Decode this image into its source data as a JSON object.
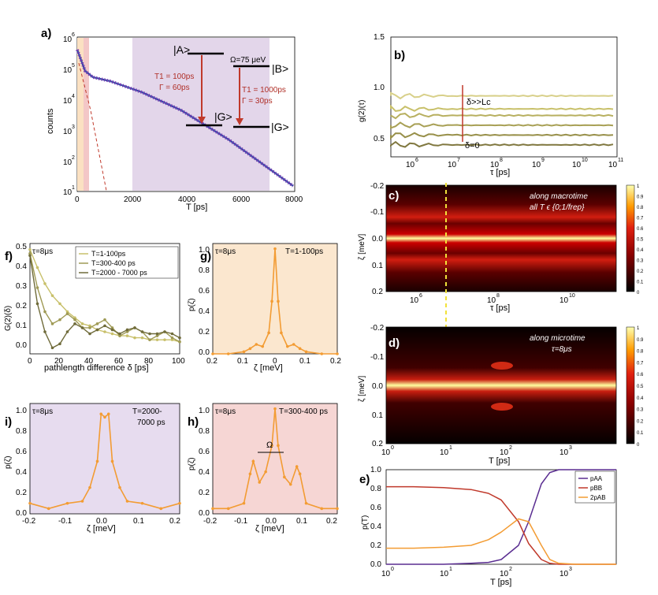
{
  "panels": {
    "a": {
      "label": "a)",
      "xlabel": "T [ps]",
      "ylabel": "counts",
      "xticks": [
        "0",
        "2000",
        "4000",
        "6000",
        "8000"
      ],
      "yticks": [
        "10",
        "10",
        "10",
        "10",
        "10",
        "10"
      ],
      "yexp": [
        "1",
        "2",
        "3",
        "4",
        "5",
        "6"
      ],
      "levelA": "|A>",
      "levelB": "|B>",
      "levelG1": "|G>",
      "levelG2": "|G>",
      "omega": "Ω=75 μeV",
      "t1a": "T1 = 100ps",
      "gammaA": "Γ = 60ps",
      "t1b": "T1 = 1000ps",
      "gammaB": "Γ = 30ps"
    },
    "b": {
      "label": "b)",
      "xlabel": "τ [ps]",
      "ylabel": "g(2)(τ)",
      "yticks": [
        "0.5",
        "1.0",
        "1.5"
      ],
      "xticks": [
        "10",
        "10",
        "10",
        "10",
        "10",
        "10"
      ],
      "xexp": [
        "6",
        "7",
        "8",
        "9",
        "10",
        "11"
      ],
      "ann_top": "δ>>Lc",
      "ann_bottom": "δ=0"
    },
    "c": {
      "label": "c)",
      "xlabel": "τ [ps]",
      "ylabel": "ζ [meV]",
      "ann1": "along macrotime",
      "ann2": "all T ϵ {0;1/frep}",
      "yticks": [
        "-0.2",
        "-0.1",
        "0.0",
        "0.1",
        "0.2"
      ],
      "xticks": [
        "10",
        "10",
        "10"
      ],
      "xexp": [
        "6",
        "8",
        "10"
      ],
      "cbticks": [
        "1",
        "0.9",
        "0.8",
        "0.7",
        "0.6",
        "0.5",
        "0.4",
        "0.3",
        "0.2",
        "0.1",
        "0"
      ]
    },
    "d": {
      "label": "d)",
      "xlabel": "T [ps]",
      "ylabel": "ζ [meV]",
      "ann1": "along microtime",
      "ann2": "τ=8μs",
      "yticks": [
        "-0.2",
        "-0.1",
        "0.0",
        "0.1",
        "0.2"
      ],
      "xticks": [
        "10",
        "10",
        "10",
        "10"
      ],
      "xexp": [
        "0",
        "1",
        "2",
        "3"
      ],
      "cbticks": [
        "1",
        "0.9",
        "0.8",
        "0.7",
        "0.6",
        "0.5",
        "0.4",
        "0.3",
        "0.2",
        "0.1",
        "0"
      ]
    },
    "e": {
      "label": "e)",
      "xlabel": "T [ps]",
      "ylabel": "p(T)",
      "yticks": [
        "0.0",
        "0.2",
        "0.4",
        "0.6",
        "0.8",
        "1.0"
      ],
      "xticks": [
        "10",
        "10",
        "10",
        "10"
      ],
      "xexp": [
        "0",
        "1",
        "2",
        "3"
      ],
      "legend": [
        "pAA",
        "pBB",
        "2pAB"
      ]
    },
    "f": {
      "label": "f)",
      "xlabel": "pathlength difference δ  [ps]",
      "ylabel": "G(2)(δ)",
      "tau": "τ=8μs",
      "xticks": [
        "0",
        "20",
        "40",
        "60",
        "80",
        "100"
      ],
      "yticks": [
        "0.0",
        "0.1",
        "0.2",
        "0.3",
        "0.4",
        "0.5"
      ],
      "legend": [
        "T=1-100ps",
        "T=300-400 ps",
        "T=2000 - 7000 ps"
      ]
    },
    "g": {
      "label": "g)",
      "xlabel": "ζ [meV]",
      "ylabel": "p(ζ)",
      "tau": "τ=8μs",
      "range": "T=1-100ps",
      "xticks": [
        "0.2",
        "0.1",
        "0",
        "0.1",
        "0.2"
      ],
      "yticks": [
        "0.0",
        "0.2",
        "0.4",
        "0.6",
        "0.8",
        "1.0"
      ]
    },
    "h": {
      "label": "h)",
      "xlabel": "ζ [meV]",
      "ylabel": "p(ζ)",
      "tau": "τ=8μs",
      "range": "T=300-400 ps",
      "omega": "Ω",
      "xticks": [
        "-0.2",
        "-0.1",
        "0.0",
        "0.1",
        "0.2"
      ],
      "yticks": [
        "0.0",
        "0.2",
        "0.4",
        "0.6",
        "0.8",
        "1.0"
      ]
    },
    "i": {
      "label": "i)",
      "xlabel": "ζ [meV]",
      "ylabel": "p(ζ)",
      "tau": "τ=8μs",
      "range1": "T=2000-",
      "range2": "7000 ps",
      "xticks": [
        "-0.2",
        "-0.1",
        "0.0",
        "0.1",
        "0.2"
      ],
      "yticks": [
        "0.0",
        "0.2",
        "0.4",
        "0.6",
        "0.8",
        "1.0"
      ]
    }
  },
  "colors": {
    "orange": "#f39c33",
    "purple": "#5a2d91",
    "red": "#c0392b",
    "olive1": "#c8c06a",
    "olive2": "#9f9a55",
    "olive3": "#6f6b3a",
    "bgA": "#e3d6ea",
    "bgG": "#fbe7cf",
    "bgH": "#f6d6d4",
    "bgI": "#e7dcef"
  },
  "chart_data": [
    {
      "type": "scatter",
      "panel": "a",
      "xlabel": "T [ps]",
      "ylabel": "counts",
      "ylog": true,
      "xlim": [
        -200,
        8000
      ],
      "ylim": [
        10,
        1000000
      ],
      "x": [
        0,
        100,
        200,
        300,
        400,
        600,
        800,
        1000,
        1500,
        2000,
        2500,
        3000,
        3500,
        4000,
        4500,
        5000,
        5500,
        6000,
        6500,
        7000,
        7500,
        8000
      ],
      "values": [
        300000,
        120000,
        50000,
        28000,
        17000,
        14000,
        12000,
        10500,
        8500,
        6500,
        4800,
        3500,
        2500,
        1700,
        1200,
        850,
        600,
        400,
        250,
        150,
        70,
        25
      ]
    },
    {
      "type": "line",
      "panel": "b",
      "xlabel": "τ [ps]",
      "ylabel": "g(2)(τ)",
      "xlog": true,
      "xlim": [
        100000,
        100000000000
      ],
      "ylim": [
        0.4,
        1.5
      ],
      "series": [
        {
          "values": [
            0.96
          ]
        },
        {
          "values": [
            0.84
          ]
        },
        {
          "values": [
            0.78
          ]
        },
        {
          "values": [
            0.69
          ]
        },
        {
          "values": [
            0.6
          ]
        },
        {
          "values": [
            0.51
          ]
        }
      ]
    },
    {
      "type": "heatmap",
      "panel": "c",
      "xlabel": "τ [ps]",
      "ylabel": "ζ [meV]",
      "xlog": true,
      "ylim": [
        -0.2,
        0.2
      ]
    },
    {
      "type": "heatmap",
      "panel": "d",
      "xlabel": "T [ps]",
      "ylabel": "ζ [meV]",
      "xlog": true,
      "ylim": [
        -0.2,
        0.2
      ]
    },
    {
      "type": "line",
      "panel": "e",
      "xlabel": "T [ps]",
      "ylabel": "p(T)",
      "xlog": true,
      "xlim": [
        1,
        10000
      ],
      "ylim": [
        0,
        1
      ],
      "x": [
        1,
        3,
        10,
        30,
        60,
        100,
        200,
        300,
        500,
        700,
        1000,
        2000,
        10000
      ],
      "series": [
        {
          "name": "pAA",
          "values": [
            0.0,
            0.0,
            0.0,
            0.01,
            0.02,
            0.05,
            0.2,
            0.45,
            0.85,
            0.97,
            1.0,
            1.0,
            1.0
          ]
        },
        {
          "name": "pBB",
          "values": [
            0.82,
            0.82,
            0.81,
            0.79,
            0.75,
            0.68,
            0.45,
            0.22,
            0.05,
            0.01,
            0.0,
            0.0,
            0.0
          ]
        },
        {
          "name": "2pAB",
          "values": [
            0.17,
            0.17,
            0.18,
            0.2,
            0.26,
            0.34,
            0.48,
            0.45,
            0.2,
            0.05,
            0.01,
            0.0,
            0.0
          ]
        }
      ]
    },
    {
      "type": "line",
      "panel": "f",
      "xlabel": "pathlength difference δ [ps]",
      "ylabel": "G(2)(δ)",
      "xlim": [
        0,
        100
      ],
      "ylim": [
        -0.05,
        0.5
      ],
      "x": [
        0,
        5,
        10,
        15,
        20,
        25,
        30,
        35,
        40,
        45,
        50,
        55,
        60,
        65,
        70,
        75,
        80,
        85,
        90,
        95,
        100
      ],
      "series": [
        {
          "name": "T=1-100ps",
          "values": [
            0.47,
            0.38,
            0.3,
            0.24,
            0.2,
            0.16,
            0.13,
            0.1,
            0.09,
            0.07,
            0.06,
            0.05,
            0.04,
            0.04,
            0.03,
            0.03,
            0.02,
            0.02,
            0.02,
            0.02,
            0.01
          ]
        },
        {
          "name": "T=300-400 ps",
          "values": [
            0.45,
            0.28,
            0.16,
            0.1,
            0.12,
            0.15,
            0.12,
            0.08,
            0.08,
            0.1,
            0.12,
            0.08,
            0.04,
            0.06,
            0.08,
            0.06,
            0.02,
            0.04,
            0.06,
            0.03,
            0.01
          ]
        },
        {
          "name": "T=2000 - 7000 ps",
          "values": [
            0.44,
            0.2,
            0.06,
            -0.02,
            0.0,
            0.06,
            0.1,
            0.08,
            0.05,
            0.07,
            0.09,
            0.07,
            0.05,
            0.07,
            0.08,
            0.06,
            0.05,
            0.05,
            0.06,
            0.05,
            0.03
          ]
        }
      ]
    },
    {
      "type": "line",
      "panel": "g",
      "xlabel": "ζ [meV]",
      "ylabel": "p(ζ)",
      "xlim": [
        -0.2,
        0.2
      ],
      "ylim": [
        0,
        1.05
      ],
      "x": [
        -0.2,
        -0.15,
        -0.1,
        -0.08,
        -0.06,
        -0.04,
        -0.02,
        -0.01,
        0,
        0.01,
        0.02,
        0.04,
        0.06,
        0.08,
        0.1,
        0.15,
        0.2
      ],
      "values": [
        0.0,
        0.0,
        0.02,
        0.05,
        0.09,
        0.07,
        0.2,
        0.5,
        1.0,
        0.5,
        0.2,
        0.07,
        0.09,
        0.05,
        0.02,
        0.0,
        0.0
      ]
    },
    {
      "type": "line",
      "panel": "h",
      "xlabel": "ζ [meV]",
      "ylabel": "p(ζ)",
      "xlim": [
        -0.2,
        0.2
      ],
      "ylim": [
        0,
        1.05
      ],
      "x": [
        -0.2,
        -0.15,
        -0.1,
        -0.08,
        -0.07,
        -0.05,
        -0.03,
        -0.01,
        0,
        0.01,
        0.03,
        0.05,
        0.07,
        0.08,
        0.1,
        0.15,
        0.2
      ],
      "values": [
        0.05,
        0.05,
        0.1,
        0.38,
        0.5,
        0.3,
        0.4,
        0.65,
        1.0,
        0.65,
        0.35,
        0.28,
        0.45,
        0.38,
        0.1,
        0.05,
        0.05
      ]
    },
    {
      "type": "line",
      "panel": "i",
      "xlabel": "ζ [meV]",
      "ylabel": "p(ζ)",
      "xlim": [
        -0.2,
        0.2
      ],
      "ylim": [
        0,
        1.05
      ],
      "x": [
        -0.2,
        -0.15,
        -0.1,
        -0.06,
        -0.04,
        -0.02,
        -0.01,
        0,
        0.01,
        0.02,
        0.04,
        0.06,
        0.1,
        0.15,
        0.2
      ],
      "values": [
        0.1,
        0.05,
        0.1,
        0.12,
        0.25,
        0.5,
        0.95,
        0.92,
        0.95,
        0.5,
        0.25,
        0.12,
        0.1,
        0.05,
        0.1
      ]
    }
  ]
}
